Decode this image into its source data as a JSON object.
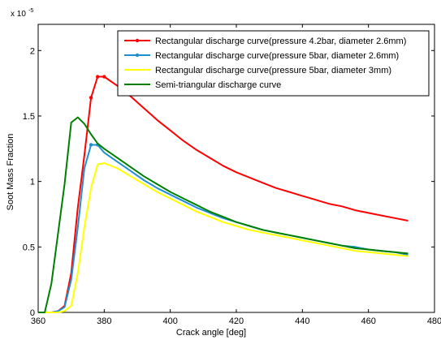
{
  "chart_data": {
    "type": "line",
    "title": "",
    "xlabel": "Crack angle [deg]",
    "ylabel": "Soot Mass Fraction",
    "xlim": [
      360,
      480
    ],
    "ylim": [
      0,
      2.2
    ],
    "y_multiplier_base": "x 10",
    "y_multiplier_exp": "-5",
    "xticks": [
      360,
      380,
      400,
      420,
      440,
      460,
      480
    ],
    "yticks": [
      0,
      0.5,
      1,
      1.5,
      2
    ],
    "ytick_labels": [
      "0",
      "0.5",
      "1",
      "1.5",
      "2"
    ],
    "grid": false,
    "legend_position": "top-right",
    "series": [
      {
        "name": "Rectangular discharge curve(pressure 4.2bar, diameter 2.6mm)",
        "color": "#ff0000",
        "marker": true,
        "x": [
          362,
          364,
          366,
          368,
          370,
          372,
          374,
          376,
          378,
          380,
          384,
          388,
          392,
          396,
          400,
          404,
          408,
          412,
          416,
          420,
          424,
          428,
          432,
          436,
          440,
          444,
          448,
          452,
          456,
          460,
          464,
          468,
          472
        ],
        "y": [
          0,
          0.0,
          0.01,
          0.05,
          0.3,
          0.8,
          1.2,
          1.64,
          1.8,
          1.8,
          1.73,
          1.65,
          1.56,
          1.47,
          1.39,
          1.31,
          1.24,
          1.18,
          1.12,
          1.07,
          1.03,
          0.99,
          0.95,
          0.92,
          0.89,
          0.86,
          0.83,
          0.81,
          0.78,
          0.76,
          0.74,
          0.72,
          0.7
        ],
        "marker_points_x": [
          376,
          378,
          380
        ],
        "marker_points_y": [
          1.64,
          1.8,
          1.8
        ]
      },
      {
        "name": "Rectangular discharge curve(pressure 5bar, diameter 2.6mm)",
        "color": "#1e90d0",
        "marker": true,
        "x": [
          362,
          364,
          366,
          368,
          370,
          372,
          374,
          376,
          378,
          380,
          384,
          388,
          392,
          396,
          400,
          404,
          408,
          412,
          416,
          420,
          424,
          428,
          432,
          436,
          440,
          444,
          448,
          452,
          456,
          460,
          464,
          468,
          472
        ],
        "y": [
          0,
          0.0,
          0.01,
          0.04,
          0.25,
          0.65,
          1.1,
          1.28,
          1.28,
          1.22,
          1.15,
          1.08,
          1.01,
          0.95,
          0.9,
          0.85,
          0.8,
          0.76,
          0.72,
          0.69,
          0.66,
          0.63,
          0.61,
          0.59,
          0.57,
          0.55,
          0.53,
          0.51,
          0.5,
          0.48,
          0.47,
          0.46,
          0.44
        ],
        "marker_points_x": [
          376,
          378
        ],
        "marker_points_y": [
          1.28,
          1.28
        ]
      },
      {
        "name": "Rectangular discharge curve(pressure 5bar, diameter 3mm)",
        "color": "#ffff00",
        "marker": false,
        "x": [
          362,
          364,
          366,
          368,
          370,
          372,
          374,
          376,
          378,
          380,
          384,
          388,
          392,
          396,
          400,
          404,
          408,
          412,
          416,
          420,
          424,
          428,
          432,
          436,
          440,
          444,
          448,
          452,
          456,
          460,
          464,
          468,
          472
        ],
        "y": [
          0,
          0.0,
          0.0,
          0.01,
          0.05,
          0.3,
          0.65,
          0.95,
          1.13,
          1.14,
          1.1,
          1.04,
          0.98,
          0.92,
          0.87,
          0.82,
          0.77,
          0.73,
          0.69,
          0.66,
          0.63,
          0.61,
          0.59,
          0.57,
          0.55,
          0.53,
          0.51,
          0.49,
          0.47,
          0.46,
          0.45,
          0.44,
          0.43
        ]
      },
      {
        "name": "Semi-triangular discharge curve",
        "color": "#008000",
        "marker": false,
        "x": [
          360,
          362,
          364,
          366,
          368,
          370,
          372,
          374,
          376,
          378,
          380,
          384,
          388,
          392,
          396,
          400,
          404,
          408,
          412,
          416,
          420,
          424,
          428,
          432,
          436,
          440,
          444,
          448,
          452,
          456,
          460,
          464,
          468,
          472
        ],
        "y": [
          0,
          0.0,
          0.22,
          0.6,
          0.98,
          1.45,
          1.49,
          1.44,
          1.36,
          1.29,
          1.25,
          1.18,
          1.11,
          1.04,
          0.98,
          0.92,
          0.87,
          0.82,
          0.77,
          0.73,
          0.69,
          0.66,
          0.63,
          0.61,
          0.59,
          0.57,
          0.55,
          0.53,
          0.51,
          0.49,
          0.48,
          0.47,
          0.46,
          0.45
        ]
      }
    ]
  }
}
